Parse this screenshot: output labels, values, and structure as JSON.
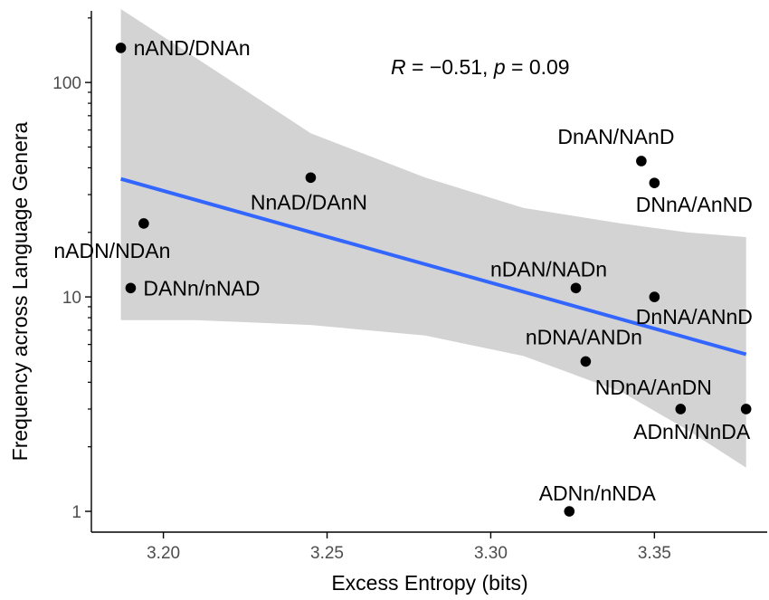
{
  "chart_data": {
    "type": "scatter",
    "xlabel": "Excess Entropy (bits)",
    "ylabel": "Frequency across Language Genera",
    "x_scale": "linear",
    "y_scale": "log10",
    "xlim": [
      3.178,
      3.385
    ],
    "ylim": [
      0.8,
      220
    ],
    "x_ticks": [
      3.2,
      3.25,
      3.3,
      3.35
    ],
    "x_tick_labels": [
      "3.20",
      "3.25",
      "3.30",
      "3.35"
    ],
    "y_ticks": [
      1,
      10,
      100
    ],
    "y_tick_labels": [
      "1",
      "10",
      "100"
    ],
    "grid": false,
    "annotation": {
      "r_symbol": "R",
      "r_text": " = −0.51, ",
      "p_symbol": "p",
      "p_text": " = 0.09"
    },
    "points": [
      {
        "label": "nAND/DNAn",
        "x": 3.187,
        "y": 145
      },
      {
        "label": "NnAD/DAnN",
        "x": 3.245,
        "y": 36
      },
      {
        "label": "nADN/NDAn",
        "x": 3.194,
        "y": 22
      },
      {
        "label": "DANn/nNAD",
        "x": 3.19,
        "y": 11
      },
      {
        "label": "DnAN/NAnD",
        "x": 3.346,
        "y": 43
      },
      {
        "label": "DNnA/AnND",
        "x": 3.35,
        "y": 34
      },
      {
        "label": "nDAN/NADn",
        "x": 3.326,
        "y": 11
      },
      {
        "label": "DnNA/ANnD",
        "x": 3.35,
        "y": 10
      },
      {
        "label": "nDNA/ANDn",
        "x": 3.329,
        "y": 5
      },
      {
        "label": "NDnA/AnDN",
        "x": 3.358,
        "y": 3
      },
      {
        "label": "ADnN/NnDA",
        "x": 3.378,
        "y": 3
      },
      {
        "label": "ADNn/nNDA",
        "x": 3.324,
        "y": 1
      }
    ],
    "regression": {
      "x": [
        3.187,
        3.378
      ],
      "y": [
        35.5,
        5.4
      ],
      "color": "#3366ff"
    },
    "confidence_band": {
      "x": [
        3.187,
        3.21,
        3.245,
        3.28,
        3.31,
        3.34,
        3.36,
        3.378
      ],
      "upper": [
        220,
        130,
        58,
        36,
        26,
        22,
        20,
        19
      ],
      "lower": [
        7.8,
        7.8,
        7.4,
        6.6,
        5.3,
        3.6,
        2.4,
        1.6
      ],
      "color": "#d3d3d3"
    },
    "colors": {
      "points": "#000000",
      "line": "#3366ff",
      "band": "#d3d3d3",
      "axis": "#000000"
    }
  }
}
